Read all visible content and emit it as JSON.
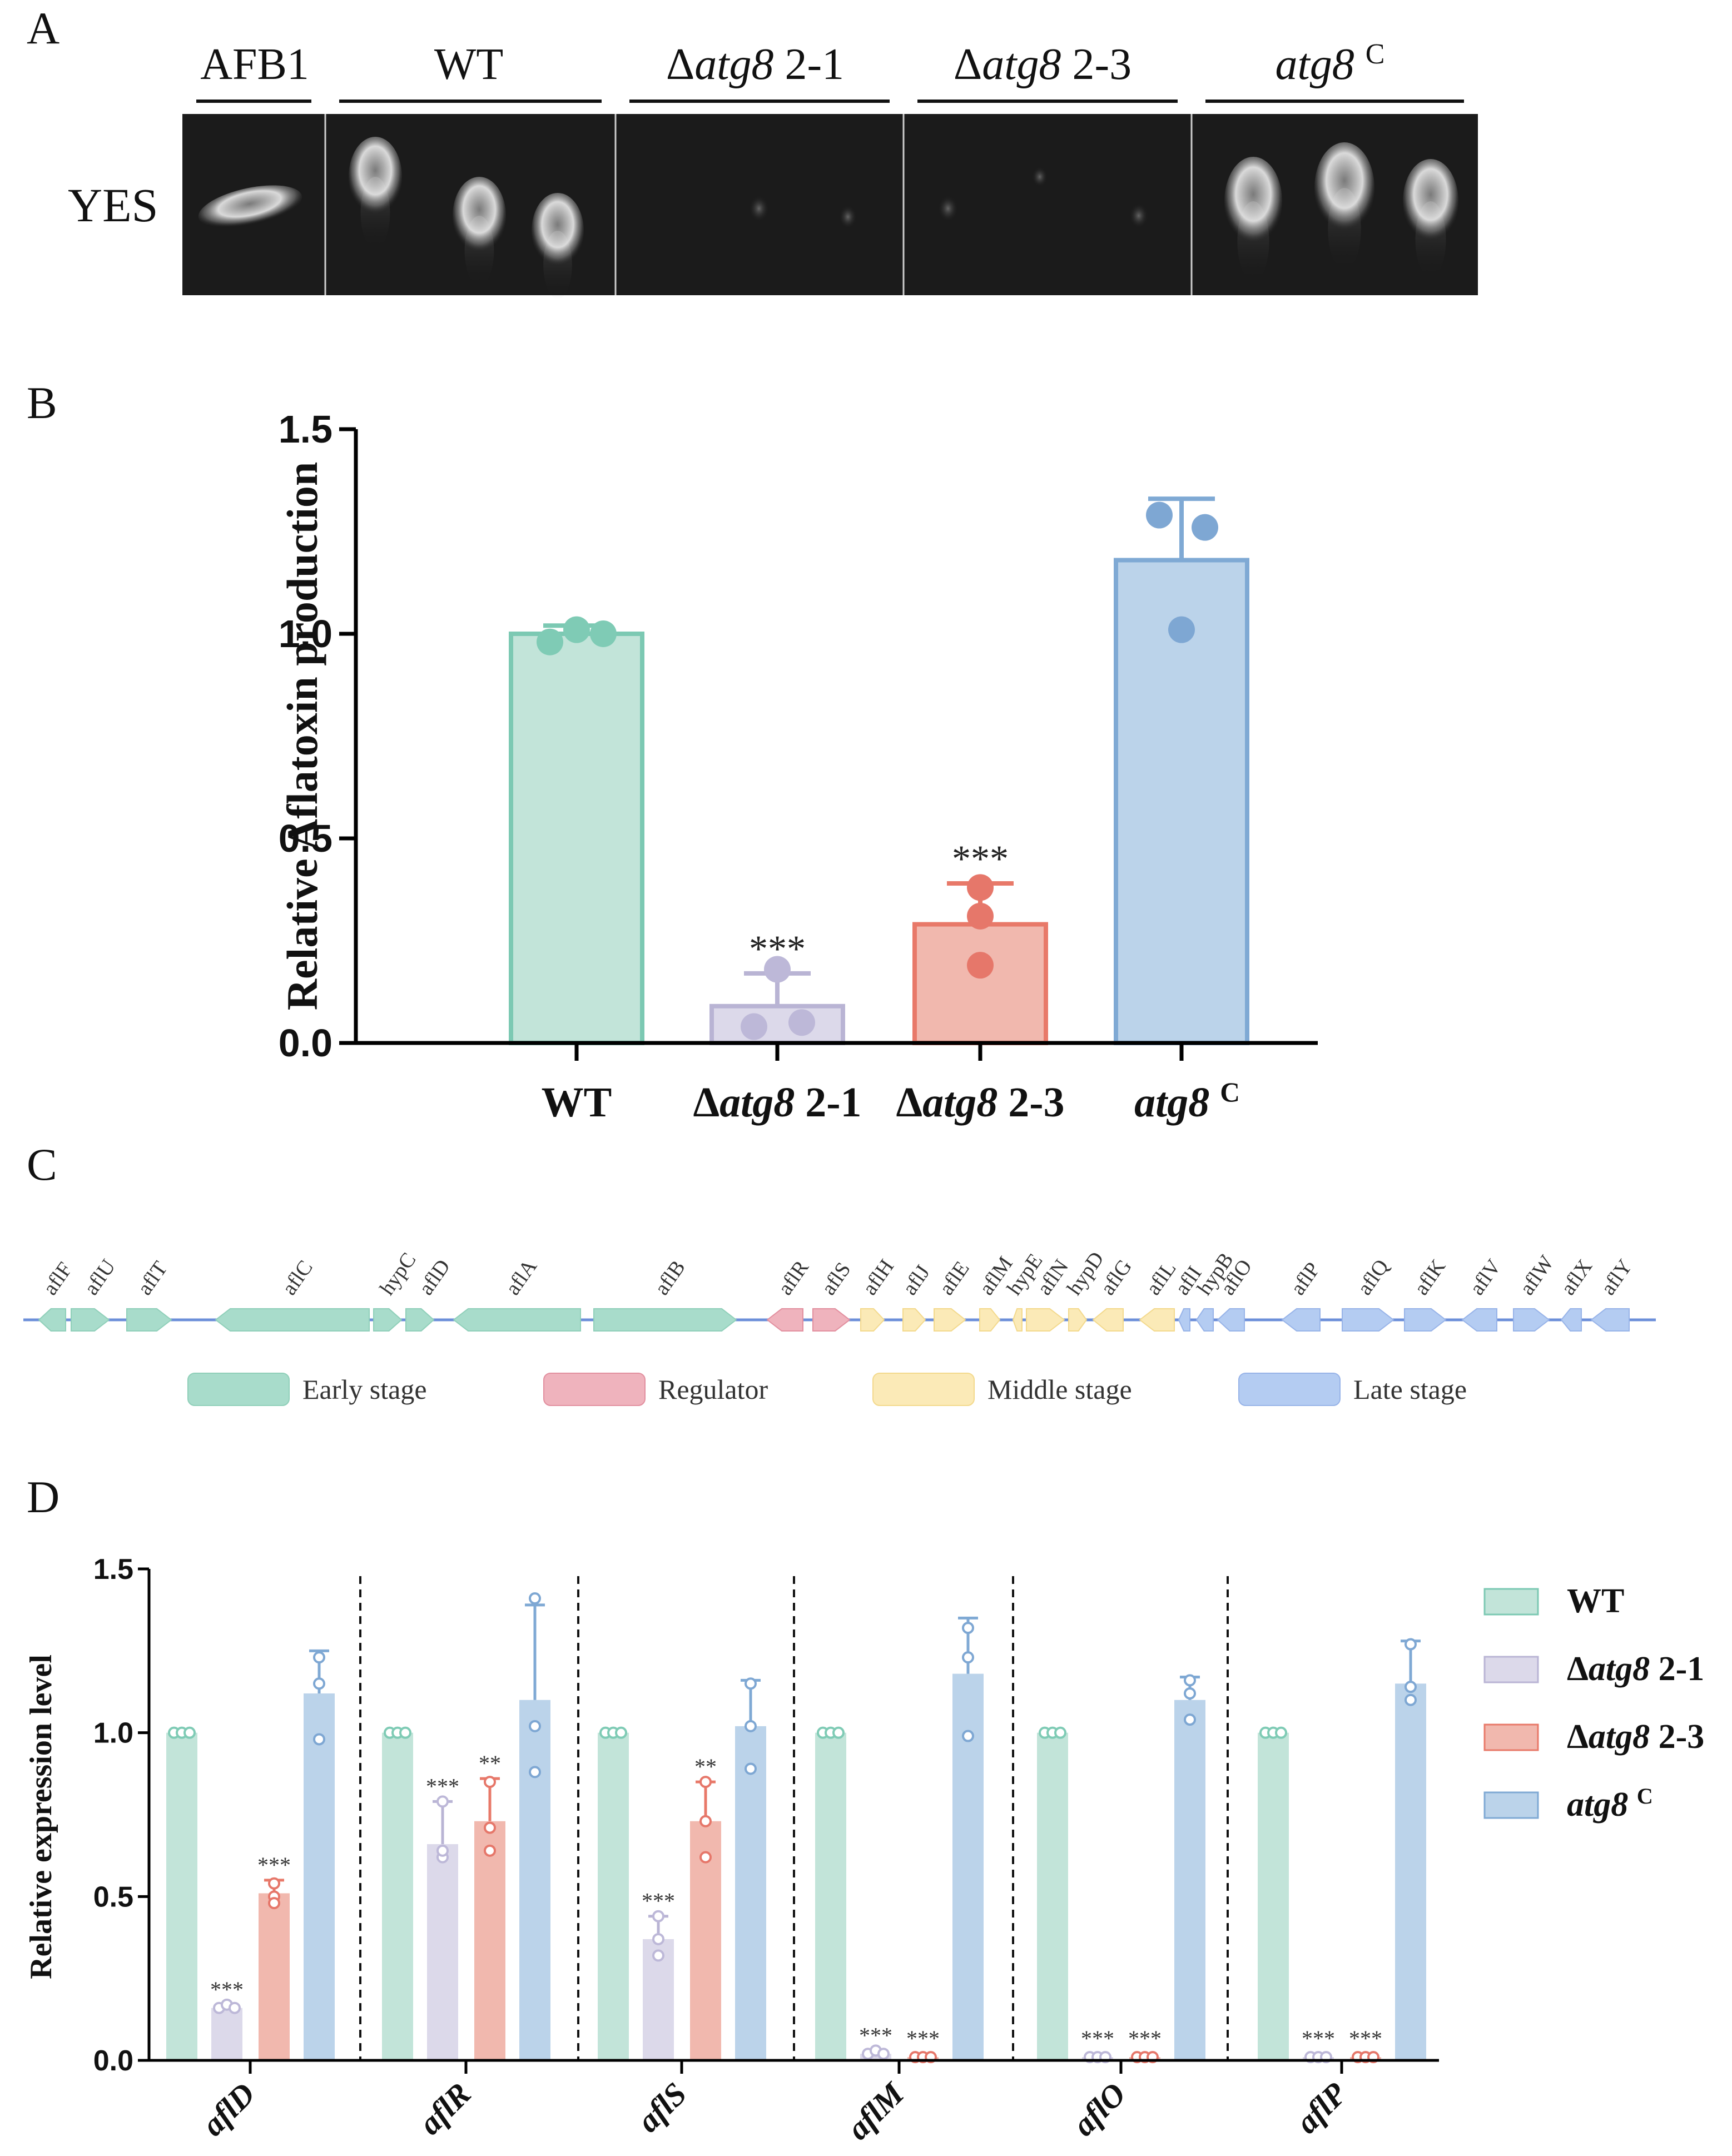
{
  "panels": {
    "a": "A",
    "b": "B",
    "c": "C",
    "d": "D"
  },
  "colors": {
    "wt_fill": "#c2e4d9",
    "wt_stroke": "#7cc9b3",
    "wt_point": "#7fcbb5",
    "d21_fill": "#dcd9ea",
    "d21_stroke": "#b9b4d4",
    "d21_point": "#bdb8d8",
    "d23_fill": "#f1b8ae",
    "d23_stroke": "#e87969",
    "d23_point": "#e6776a",
    "c_fill": "#bbd3ea",
    "c_stroke": "#7fa9d4",
    "c_point": "#7ea7d3",
    "early": "#a8dccb",
    "regulator": "#efb3bd",
    "middle": "#fbeab7",
    "late": "#b4ccf2",
    "backbone": "#6c8fd9"
  },
  "panel_a": {
    "lanes": [
      {
        "name": "AFB1",
        "italic": "",
        "suffix": ""
      },
      {
        "name": "WT",
        "italic": "",
        "suffix": ""
      },
      {
        "name": "Δ",
        "italic": "atg8",
        "suffix": " 2-1"
      },
      {
        "name": "Δ",
        "italic": "atg8",
        "suffix": " 2-3"
      },
      {
        "name": "",
        "italic": "atg8",
        "suffix": " C"
      }
    ],
    "row_label": "YES"
  },
  "chart_data": [
    {
      "type": "bar",
      "id": "relative-aflatoxin-production",
      "categories": [
        "WT",
        "Δatg8 2-1",
        "Δatg8 2-3",
        "atg8 C"
      ],
      "category_labels": [
        {
          "prefix": "WT",
          "italic": "",
          "suffix": ""
        },
        {
          "prefix": "Δ",
          "italic": "atg8",
          "suffix": " 2-1"
        },
        {
          "prefix": "Δ",
          "italic": "atg8",
          "suffix": " 2-3"
        },
        {
          "prefix": "",
          "italic": "atg8",
          "suffix": " C"
        }
      ],
      "values": [
        1.0,
        0.09,
        0.29,
        1.18
      ],
      "errors": [
        0.02,
        0.08,
        0.1,
        0.15
      ],
      "points": [
        [
          0.98,
          1.01,
          1.0
        ],
        [
          0.04,
          0.18,
          0.05
        ],
        [
          0.38,
          0.31,
          0.19
        ],
        [
          1.29,
          1.26,
          1.01
        ]
      ],
      "significance": [
        "",
        "***",
        "***",
        ""
      ],
      "ylabel": "Relative Aflatoxin production",
      "ylim": [
        0,
        1.5
      ],
      "yticks": [
        "0.0",
        "0.5",
        "1.0",
        "1.5"
      ]
    },
    {
      "type": "bar",
      "id": "relative-expression-level",
      "categories": [
        "aflD",
        "aflR",
        "aflS",
        "aflM",
        "aflO",
        "aflP"
      ],
      "series": [
        {
          "name": "WT",
          "prefix": "WT",
          "italic": "",
          "suffix": "",
          "values": [
            1.0,
            1.0,
            1.0,
            1.0,
            1.0,
            1.0
          ],
          "errors": [
            0,
            0,
            0,
            0,
            0,
            0
          ],
          "points": [
            [
              1.0,
              1.0,
              1.0
            ],
            [
              1.0,
              1.0,
              1.0
            ],
            [
              1.0,
              1.0,
              1.0
            ],
            [
              1.0,
              1.0,
              1.0
            ],
            [
              1.0,
              1.0,
              1.0
            ],
            [
              1.0,
              1.0,
              1.0
            ]
          ],
          "significance": [
            "",
            "",
            "",
            "",
            "",
            ""
          ]
        },
        {
          "name": "Δatg8 2-1",
          "prefix": "Δ",
          "italic": "atg8",
          "suffix": " 2-1",
          "values": [
            0.16,
            0.66,
            0.37,
            0.02,
            0.01,
            0.01
          ],
          "errors": [
            0.01,
            0.13,
            0.07,
            0.01,
            0.01,
            0.01
          ],
          "points": [
            [
              0.16,
              0.17,
              0.16
            ],
            [
              0.79,
              0.62,
              0.64
            ],
            [
              0.44,
              0.32,
              0.37
            ],
            [
              0.02,
              0.03,
              0.02
            ],
            [
              0.01,
              0.01,
              0.01
            ],
            [
              0.01,
              0.01,
              0.01
            ]
          ],
          "significance": [
            "***",
            "***",
            "***",
            "***",
            "***",
            "***"
          ]
        },
        {
          "name": "Δatg8 2-3",
          "prefix": "Δ",
          "italic": "atg8",
          "suffix": " 2-3",
          "values": [
            0.51,
            0.73,
            0.73,
            0.01,
            0.01,
            0.01
          ],
          "errors": [
            0.04,
            0.13,
            0.12,
            0.01,
            0.01,
            0.01
          ],
          "points": [
            [
              0.54,
              0.5,
              0.48
            ],
            [
              0.85,
              0.71,
              0.64
            ],
            [
              0.85,
              0.73,
              0.62
            ],
            [
              0.01,
              0.01,
              0.01
            ],
            [
              0.01,
              0.01,
              0.01
            ],
            [
              0.01,
              0.01,
              0.01
            ]
          ],
          "significance": [
            "***",
            "**",
            "**",
            "***",
            "***",
            "***"
          ]
        },
        {
          "name": "atg8 C",
          "prefix": "",
          "italic": "atg8",
          "suffix": " C",
          "values": [
            1.12,
            1.1,
            1.02,
            1.18,
            1.1,
            1.15
          ],
          "errors": [
            0.13,
            0.29,
            0.14,
            0.17,
            0.07,
            0.13
          ],
          "points": [
            [
              1.23,
              1.15,
              0.98
            ],
            [
              1.41,
              1.02,
              0.88
            ],
            [
              1.15,
              1.02,
              0.89
            ],
            [
              1.32,
              1.23,
              0.99
            ],
            [
              1.16,
              1.12,
              1.04
            ],
            [
              1.27,
              1.14,
              1.1
            ]
          ],
          "significance": [
            "",
            "",
            "",
            "",
            "",
            ""
          ]
        }
      ],
      "ylabel": "Relative expression level",
      "ylim": [
        0,
        1.5
      ],
      "yticks": [
        "0.0",
        "0.5",
        "1.0",
        "1.5"
      ]
    }
  ],
  "panel_c": {
    "genes": [
      {
        "label": "aflF",
        "stage": "early",
        "dir": "left"
      },
      {
        "label": "aflU",
        "stage": "early",
        "dir": "right"
      },
      {
        "label": "aflT",
        "stage": "early",
        "dir": "right"
      },
      {
        "label": "aflC",
        "stage": "early",
        "dir": "left"
      },
      {
        "label": "hypC",
        "stage": "early",
        "dir": "right"
      },
      {
        "label": "aflD",
        "stage": "early",
        "dir": "right"
      },
      {
        "label": "aflA",
        "stage": "early",
        "dir": "left"
      },
      {
        "label": "aflB",
        "stage": "early",
        "dir": "right"
      },
      {
        "label": "aflR",
        "stage": "regulator",
        "dir": "left"
      },
      {
        "label": "aflS",
        "stage": "regulator",
        "dir": "right"
      },
      {
        "label": "aflH",
        "stage": "middle",
        "dir": "right"
      },
      {
        "label": "aflJ",
        "stage": "middle",
        "dir": "right"
      },
      {
        "label": "aflE",
        "stage": "middle",
        "dir": "right"
      },
      {
        "label": "aflM",
        "stage": "middle",
        "dir": "right"
      },
      {
        "label": "hypE",
        "stage": "middle",
        "dir": "left"
      },
      {
        "label": "aflN",
        "stage": "middle",
        "dir": "right"
      },
      {
        "label": "hypD",
        "stage": "middle",
        "dir": "right"
      },
      {
        "label": "aflG",
        "stage": "middle",
        "dir": "left"
      },
      {
        "label": "aflL",
        "stage": "middle",
        "dir": "left"
      },
      {
        "label": "aflI",
        "stage": "late",
        "dir": "left"
      },
      {
        "label": "hypB",
        "stage": "late",
        "dir": "left"
      },
      {
        "label": "aflO",
        "stage": "late",
        "dir": "left"
      },
      {
        "label": "aflP",
        "stage": "late",
        "dir": "left"
      },
      {
        "label": "aflQ",
        "stage": "late",
        "dir": "right"
      },
      {
        "label": "aflK",
        "stage": "late",
        "dir": "right"
      },
      {
        "label": "aflV",
        "stage": "late",
        "dir": "left"
      },
      {
        "label": "aflW",
        "stage": "late",
        "dir": "right"
      },
      {
        "label": "aflX",
        "stage": "late",
        "dir": "left"
      },
      {
        "label": "aflY",
        "stage": "late",
        "dir": "left"
      }
    ],
    "legend": [
      {
        "stage": "early",
        "label": "Early stage"
      },
      {
        "stage": "regulator",
        "label": "Regulator"
      },
      {
        "stage": "middle",
        "label": "Middle stage"
      },
      {
        "stage": "late",
        "label": "Late stage"
      }
    ]
  }
}
